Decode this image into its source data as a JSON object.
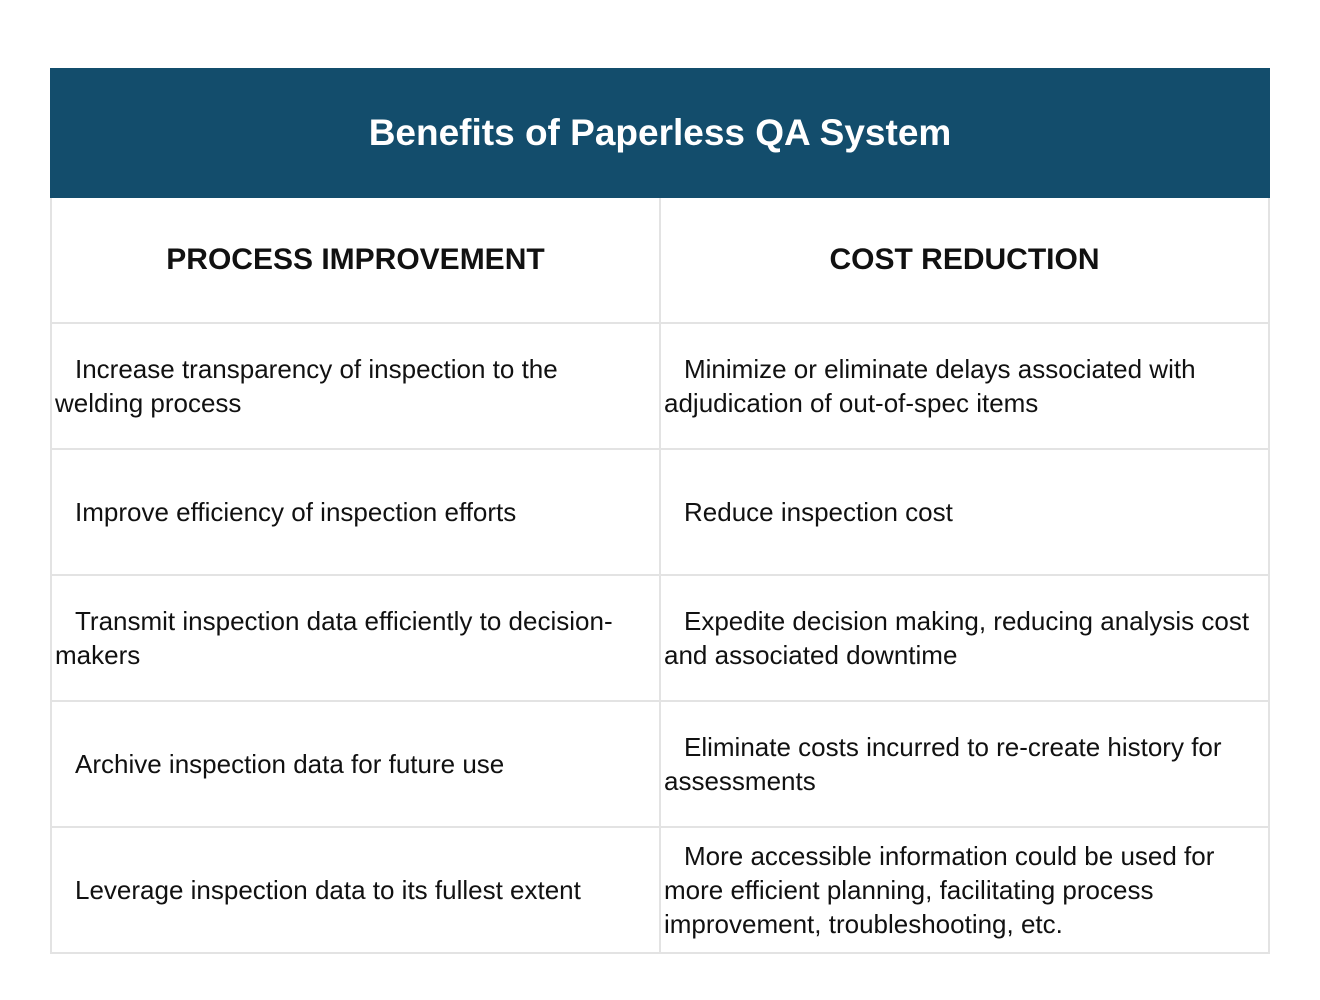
{
  "table": {
    "title": "Benefits of Paperless QA System",
    "headers": [
      "PROCESS IMPROVEMENT",
      "COST REDUCTION"
    ],
    "rows": [
      [
        "Increase transparency of inspection to the welding process",
        "Minimize or eliminate delays associated with adjudication of out-of-spec items"
      ],
      [
        "Improve efficiency of inspection efforts",
        "Reduce inspection cost"
      ],
      [
        "Transmit inspection data efficiently to decision-makers",
        "Expedite decision making, reducing analysis cost and associated downtime"
      ],
      [
        "Archive inspection data for future use",
        "Eliminate costs incurred to re-create history for assessments"
      ],
      [
        "Leverage inspection data to its fullest extent",
        "More accessible information could be used for more efficient planning, facilitating process improvement, troubleshooting, etc."
      ]
    ]
  },
  "colors": {
    "header_bg": "#134d6c",
    "header_text": "#ffffff",
    "border": "#e3e3e3"
  }
}
